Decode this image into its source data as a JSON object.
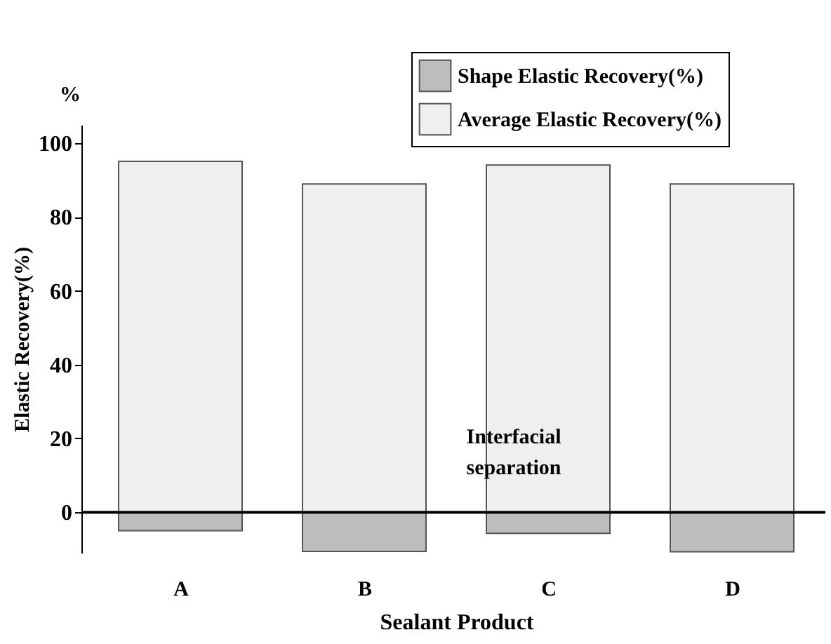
{
  "chart_data": {
    "type": "bar",
    "stacked": true,
    "xlabel": "Sealant Product",
    "ylabel": "Elastic Recovery(%)",
    "categories": [
      "A",
      "B",
      "C",
      "D"
    ],
    "series": [
      {
        "name": "Shape Elastic Recovery(%)",
        "color": "#bdbdbd",
        "values": [
          -5,
          -10.6,
          -5.7,
          -10.7
        ]
      },
      {
        "name": "Average Elastic Recovery(%)",
        "color": "#efefef",
        "values": [
          95.1,
          89,
          94.1,
          89
        ]
      }
    ],
    "ylim": [
      -11,
      105
    ],
    "yticks": [
      0,
      20,
      40,
      60,
      80,
      100
    ],
    "ref_lines": [
      {
        "axis": "y",
        "value": 0,
        "color": "#000000"
      }
    ],
    "annotations": [
      "%",
      "Interfacial separation"
    ],
    "legend": "top right",
    "grid": false
  }
}
